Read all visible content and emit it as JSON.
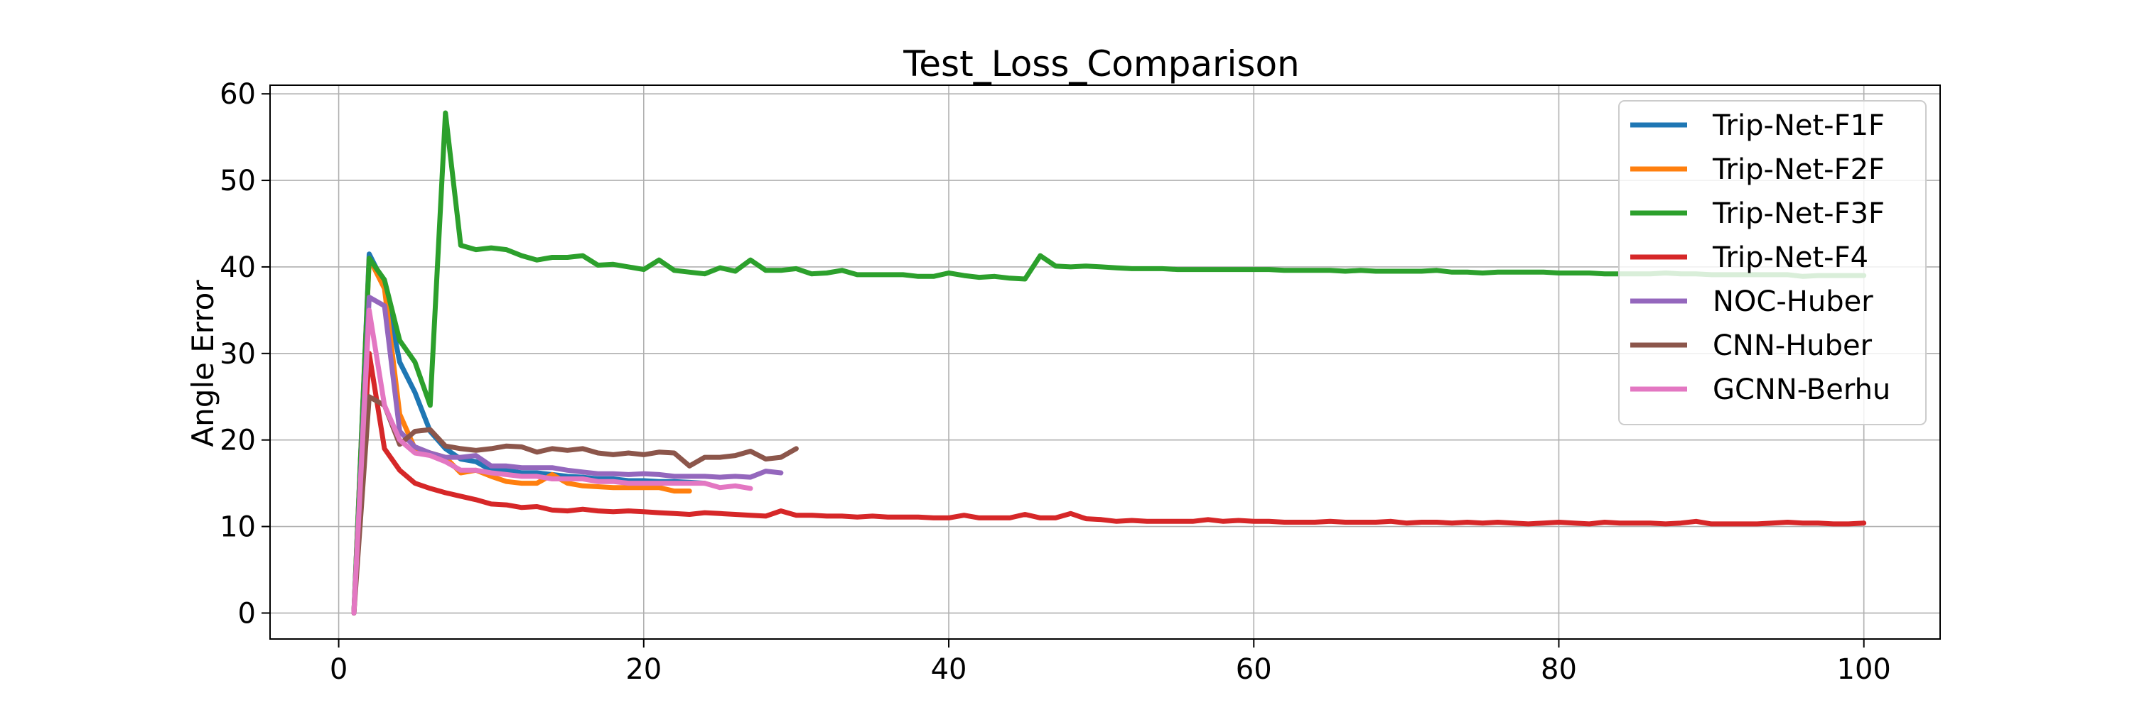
{
  "chart_data": {
    "type": "line",
    "title": "Test_Loss_Comparison",
    "xlabel": "",
    "ylabel": "Angle Error",
    "xlim": [
      -4.5,
      105
    ],
    "ylim": [
      -3,
      61
    ],
    "xticks": [
      0,
      20,
      40,
      60,
      80,
      100
    ],
    "yticks": [
      0,
      10,
      20,
      30,
      40,
      50,
      60
    ],
    "grid": true,
    "legend_position": "top-right",
    "series": [
      {
        "name": "Trip-Net-F1F",
        "color": "#1f77b4",
        "x": [
          1,
          2,
          3,
          4,
          5,
          6,
          7,
          8,
          9,
          10,
          11,
          12,
          13,
          14,
          15,
          16,
          17,
          18,
          19,
          20,
          21,
          22,
          23,
          24
        ],
        "y": [
          0,
          41.5,
          38,
          29,
          25.5,
          21,
          19,
          17.8,
          17.5,
          16.5,
          16.5,
          16.2,
          16.2,
          16.0,
          15.8,
          15.7,
          15.5,
          15.5,
          15.3,
          15.3,
          15.2,
          15.2,
          15.1,
          15.0
        ]
      },
      {
        "name": "Trip-Net-F2F",
        "color": "#ff7f0e",
        "x": [
          1,
          2,
          3,
          4,
          5,
          6,
          7,
          8,
          9,
          10,
          11,
          12,
          13,
          14,
          15,
          16,
          17,
          18,
          19,
          20,
          21,
          22,
          23
        ],
        "y": [
          0,
          41,
          37.5,
          23,
          19,
          18.5,
          18,
          16.2,
          16.5,
          15.8,
          15.2,
          15,
          15,
          16,
          15,
          14.7,
          14.6,
          14.5,
          14.5,
          14.5,
          14.5,
          14.1,
          14.1
        ]
      },
      {
        "name": "Trip-Net-F3F",
        "color": "#2ca02c",
        "x": [
          1,
          2,
          3,
          4,
          5,
          6,
          7,
          8,
          9,
          10,
          11,
          12,
          13,
          14,
          15,
          16,
          17,
          18,
          19,
          20,
          21,
          22,
          23,
          24,
          25,
          26,
          27,
          28,
          29,
          30,
          31,
          32,
          33,
          34,
          35,
          36,
          37,
          38,
          39,
          40,
          41,
          42,
          43,
          44,
          45,
          46,
          47,
          48,
          49,
          50,
          51,
          52,
          53,
          54,
          55,
          56,
          57,
          58,
          59,
          60,
          61,
          62,
          63,
          64,
          65,
          66,
          67,
          68,
          69,
          70,
          71,
          72,
          73,
          74,
          75,
          76,
          77,
          78,
          79,
          80,
          81,
          82,
          83,
          84,
          85,
          86,
          87,
          88,
          89,
          90,
          91,
          92,
          93,
          94,
          95,
          96,
          97,
          98,
          99,
          100
        ],
        "y": [
          0,
          41,
          38.5,
          31.5,
          29,
          24,
          57.8,
          42.5,
          42,
          42.2,
          42,
          41.3,
          40.8,
          41.1,
          41.1,
          41.3,
          40.2,
          40.3,
          40.0,
          39.7,
          40.8,
          39.6,
          39.4,
          39.2,
          39.9,
          39.5,
          40.8,
          39.6,
          39.6,
          39.8,
          39.2,
          39.3,
          39.6,
          39.1,
          39.1,
          39.1,
          39.1,
          38.9,
          38.9,
          39.3,
          39.0,
          38.8,
          38.9,
          38.7,
          38.6,
          41.3,
          40.1,
          40.0,
          40.1,
          40.0,
          39.9,
          39.8,
          39.8,
          39.8,
          39.7,
          39.7,
          39.7,
          39.7,
          39.7,
          39.7,
          39.7,
          39.6,
          39.6,
          39.6,
          39.6,
          39.5,
          39.6,
          39.5,
          39.5,
          39.5,
          39.5,
          39.6,
          39.4,
          39.4,
          39.3,
          39.4,
          39.4,
          39.4,
          39.4,
          39.3,
          39.3,
          39.3,
          39.2,
          39.2,
          39.2,
          39.2,
          39.3,
          39.2,
          39.2,
          39.1,
          39.1,
          39.1,
          39.1,
          39.1,
          39.1,
          38.9,
          39.0,
          39.0,
          39.0,
          39.0
        ]
      },
      {
        "name": "Trip-Net-F4",
        "color": "#d62728",
        "x": [
          1,
          2,
          3,
          4,
          5,
          6,
          7,
          8,
          9,
          10,
          11,
          12,
          13,
          14,
          15,
          16,
          17,
          18,
          19,
          20,
          21,
          22,
          23,
          24,
          25,
          26,
          27,
          28,
          29,
          30,
          31,
          32,
          33,
          34,
          35,
          36,
          37,
          38,
          39,
          40,
          41,
          42,
          43,
          44,
          45,
          46,
          47,
          48,
          49,
          50,
          51,
          52,
          53,
          54,
          55,
          56,
          57,
          58,
          59,
          60,
          61,
          62,
          63,
          64,
          65,
          66,
          67,
          68,
          69,
          70,
          71,
          72,
          73,
          74,
          75,
          76,
          77,
          78,
          79,
          80,
          81,
          82,
          83,
          84,
          85,
          86,
          87,
          88,
          89,
          90,
          91,
          92,
          93,
          94,
          95,
          96,
          97,
          98,
          99,
          100
        ],
        "y": [
          0,
          30,
          19,
          16.5,
          15,
          14.4,
          13.9,
          13.5,
          13.1,
          12.6,
          12.5,
          12.2,
          12.3,
          11.9,
          11.8,
          12,
          11.8,
          11.7,
          11.8,
          11.7,
          11.6,
          11.5,
          11.4,
          11.6,
          11.5,
          11.4,
          11.3,
          11.2,
          11.8,
          11.3,
          11.3,
          11.2,
          11.2,
          11.1,
          11.2,
          11.1,
          11.1,
          11.1,
          11.0,
          11.0,
          11.3,
          11.0,
          11.0,
          11.0,
          11.4,
          11.0,
          11.0,
          11.5,
          10.9,
          10.8,
          10.6,
          10.7,
          10.6,
          10.6,
          10.6,
          10.6,
          10.8,
          10.6,
          10.7,
          10.6,
          10.6,
          10.5,
          10.5,
          10.5,
          10.6,
          10.5,
          10.5,
          10.5,
          10.6,
          10.4,
          10.5,
          10.5,
          10.4,
          10.5,
          10.4,
          10.5,
          10.4,
          10.3,
          10.4,
          10.5,
          10.4,
          10.3,
          10.5,
          10.4,
          10.4,
          10.4,
          10.3,
          10.4,
          10.6,
          10.3,
          10.3,
          10.3,
          10.3,
          10.4,
          10.5,
          10.4,
          10.4,
          10.3,
          10.3,
          10.4
        ]
      },
      {
        "name": "NOC-Huber",
        "color": "#9467bd",
        "x": [
          1,
          2,
          3,
          4,
          5,
          6,
          7,
          8,
          9,
          10,
          11,
          12,
          13,
          14,
          15,
          16,
          17,
          18,
          19,
          20,
          21,
          22,
          23,
          24,
          25,
          26,
          27,
          28,
          29
        ],
        "y": [
          0,
          36.5,
          35.5,
          21,
          19.2,
          18.5,
          18,
          18,
          18.2,
          17,
          17,
          16.8,
          16.8,
          16.8,
          16.5,
          16.3,
          16.1,
          16.1,
          16.0,
          16.1,
          16.0,
          15.8,
          15.8,
          15.8,
          15.7,
          15.8,
          15.7,
          16.4,
          16.2
        ]
      },
      {
        "name": "CNN-Huber",
        "color": "#8c564b",
        "x": [
          1,
          2,
          3,
          4,
          5,
          6,
          7,
          8,
          9,
          10,
          11,
          12,
          13,
          14,
          15,
          16,
          17,
          18,
          19,
          20,
          21,
          22,
          23,
          24,
          25,
          26,
          27,
          28,
          29,
          30
        ],
        "y": [
          0,
          25,
          24,
          19.5,
          21,
          21.2,
          19.3,
          19,
          18.8,
          19,
          19.3,
          19.2,
          18.6,
          19,
          18.8,
          19,
          18.5,
          18.3,
          18.5,
          18.3,
          18.6,
          18.5,
          17,
          18,
          18,
          18.2,
          18.7,
          17.8,
          18,
          19
        ]
      },
      {
        "name": "GCNN-Berhu",
        "color": "#e377c2",
        "x": [
          1,
          2,
          3,
          4,
          5,
          6,
          7,
          8,
          9,
          10,
          11,
          12,
          13,
          14,
          15,
          16,
          17,
          18,
          19,
          20,
          21,
          22,
          23,
          24,
          25,
          26,
          27
        ],
        "y": [
          0,
          35,
          24,
          20,
          18.5,
          18.2,
          17.5,
          16.5,
          16.5,
          16.2,
          16.0,
          15.8,
          15.8,
          15.5,
          15.5,
          15.5,
          15.2,
          15.2,
          15.0,
          15.0,
          15.0,
          15.0,
          15.0,
          15.0,
          14.5,
          14.7,
          14.4
        ]
      }
    ]
  }
}
